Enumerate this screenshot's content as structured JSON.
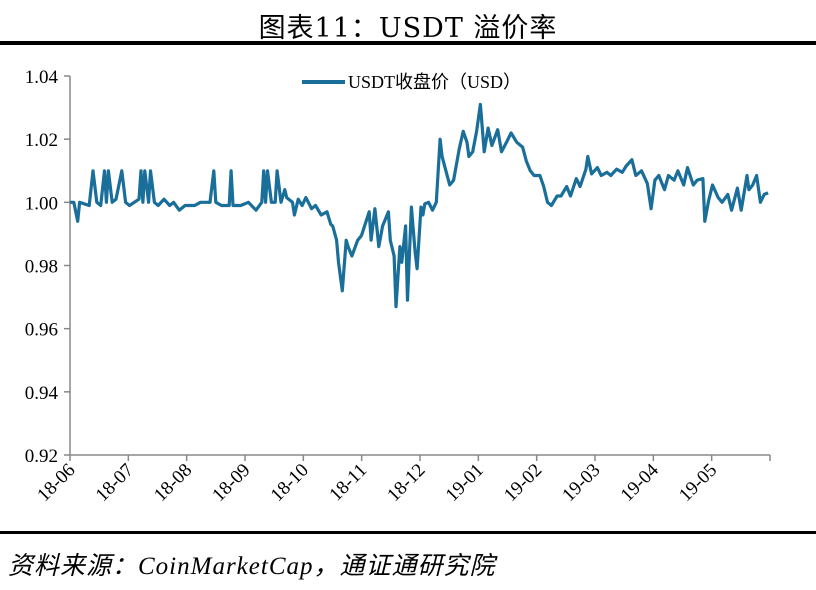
{
  "title": "图表11：USDT 溢价率",
  "source": "资料来源：CoinMarketCap，通证通研究院",
  "colors": {
    "series": "#1a6e9a",
    "axis": "#888888"
  },
  "chart_data": {
    "type": "line",
    "title": "图表11：USDT 溢价率",
    "xlabel": "",
    "ylabel": "",
    "ylim": [
      0.92,
      1.04
    ],
    "yticks": [
      "0.92",
      "0.94",
      "0.96",
      "0.98",
      "1.00",
      "1.02",
      "1.04"
    ],
    "xlim": [
      "2018-06-01",
      "2019-06-01"
    ],
    "xticks": [
      "18-06",
      "18-07",
      "18-08",
      "18-09",
      "18-10",
      "18-11",
      "18-12",
      "19-01",
      "19-02",
      "19-03",
      "19-04",
      "19-05"
    ],
    "grid": false,
    "legend_position": "top",
    "series": [
      {
        "name": "USDT收盘价（USD）",
        "color": "#1a6e9a",
        "points": [
          [
            "2018-06-01",
            1.0
          ],
          [
            "2018-06-03",
            1.0
          ],
          [
            "2018-06-05",
            0.994
          ],
          [
            "2018-06-06",
            1.0
          ],
          [
            "2018-06-11",
            0.999
          ],
          [
            "2018-06-13",
            1.01
          ],
          [
            "2018-06-15",
            1.0
          ],
          [
            "2018-06-17",
            0.999
          ],
          [
            "2018-06-19",
            1.01
          ],
          [
            "2018-06-20",
            1.0
          ],
          [
            "2018-06-21",
            1.01
          ],
          [
            "2018-06-23",
            1.0
          ],
          [
            "2018-06-25",
            1.001
          ],
          [
            "2018-06-28",
            1.01
          ],
          [
            "2018-06-30",
            1.0
          ],
          [
            "2018-07-02",
            0.999
          ],
          [
            "2018-07-07",
            1.001
          ],
          [
            "2018-07-08",
            1.01
          ],
          [
            "2018-07-09",
            1.0
          ],
          [
            "2018-07-10",
            1.01
          ],
          [
            "2018-07-12",
            1.0
          ],
          [
            "2018-07-13",
            1.01
          ],
          [
            "2018-07-15",
            1.0
          ],
          [
            "2018-07-17",
            0.999
          ],
          [
            "2018-07-20",
            1.001
          ],
          [
            "2018-07-23",
            0.999
          ],
          [
            "2018-07-25",
            1.0
          ],
          [
            "2018-07-28",
            0.9975
          ],
          [
            "2018-07-31",
            0.999
          ],
          [
            "2018-08-05",
            0.999
          ],
          [
            "2018-08-08",
            1.0
          ],
          [
            "2018-08-11",
            1.0
          ],
          [
            "2018-08-13",
            1.0
          ],
          [
            "2018-08-15",
            1.01
          ],
          [
            "2018-08-16",
            1.0
          ],
          [
            "2018-08-19",
            0.999
          ],
          [
            "2018-08-23",
            0.999
          ],
          [
            "2018-08-24",
            1.01
          ],
          [
            "2018-08-25",
            0.999
          ],
          [
            "2018-08-29",
            0.999
          ],
          [
            "2018-09-02",
            1.0
          ],
          [
            "2018-09-06",
            0.9975
          ],
          [
            "2018-09-09",
            1.0
          ],
          [
            "2018-09-10",
            1.01
          ],
          [
            "2018-09-11",
            1.0
          ],
          [
            "2018-09-12",
            1.01
          ],
          [
            "2018-09-14",
            1.0
          ],
          [
            "2018-09-16",
            1.0
          ],
          [
            "2018-09-17",
            1.01
          ],
          [
            "2018-09-19",
            1.0
          ],
          [
            "2018-09-21",
            1.004
          ],
          [
            "2018-09-22",
            1.0015
          ],
          [
            "2018-09-25",
            1.0
          ],
          [
            "2018-09-26",
            0.996
          ],
          [
            "2018-09-28",
            1.001
          ],
          [
            "2018-09-30",
            0.999
          ],
          [
            "2018-10-02",
            1.0015
          ],
          [
            "2018-10-05",
            0.998
          ],
          [
            "2018-10-07",
            0.999
          ],
          [
            "2018-10-10",
            0.996
          ],
          [
            "2018-10-13",
            0.997
          ],
          [
            "2018-10-15",
            0.993
          ],
          [
            "2018-10-16",
            0.9925
          ],
          [
            "2018-10-18",
            0.988
          ],
          [
            "2018-10-19",
            0.981
          ],
          [
            "2018-10-21",
            0.972
          ],
          [
            "2018-10-23",
            0.988
          ],
          [
            "2018-10-24",
            0.986
          ],
          [
            "2018-10-26",
            0.983
          ],
          [
            "2018-10-29",
            0.988
          ],
          [
            "2018-10-31",
            0.9895
          ],
          [
            "2018-11-04",
            0.997
          ],
          [
            "2018-11-05",
            0.988
          ],
          [
            "2018-11-07",
            0.998
          ],
          [
            "2018-11-09",
            0.986
          ],
          [
            "2018-11-11",
            0.9925
          ],
          [
            "2018-11-14",
            0.997
          ],
          [
            "2018-11-15",
            0.988
          ],
          [
            "2018-11-17",
            0.983
          ],
          [
            "2018-11-18",
            0.967
          ],
          [
            "2018-11-20",
            0.986
          ],
          [
            "2018-11-21",
            0.981
          ],
          [
            "2018-11-23",
            0.9925
          ],
          [
            "2018-11-24",
            0.969
          ],
          [
            "2018-11-26",
            0.9985
          ],
          [
            "2018-11-28",
            0.984
          ],
          [
            "2018-11-29",
            0.979
          ],
          [
            "2018-12-01",
            0.9985
          ],
          [
            "2018-12-02",
            0.996
          ],
          [
            "2018-12-03",
            0.9995
          ],
          [
            "2018-12-05",
            1.0
          ],
          [
            "2018-12-07",
            0.9975
          ],
          [
            "2018-12-09",
            1.0
          ],
          [
            "2018-12-11",
            1.02
          ],
          [
            "2018-12-12",
            1.0145
          ],
          [
            "2018-12-14",
            1.01
          ],
          [
            "2018-12-16",
            1.0055
          ],
          [
            "2018-12-18",
            1.007
          ],
          [
            "2018-12-21",
            1.017
          ],
          [
            "2018-12-23",
            1.0225
          ],
          [
            "2018-12-25",
            1.019
          ],
          [
            "2018-12-26",
            1.0145
          ],
          [
            "2018-12-28",
            1.016
          ],
          [
            "2018-12-30",
            1.0225
          ],
          [
            "2019-01-01",
            1.031
          ],
          [
            "2019-01-03",
            1.016
          ],
          [
            "2019-01-05",
            1.0235
          ],
          [
            "2019-01-07",
            1.018
          ],
          [
            "2019-01-10",
            1.023
          ],
          [
            "2019-01-12",
            1.016
          ],
          [
            "2019-01-15",
            1.0195
          ],
          [
            "2019-01-17",
            1.022
          ],
          [
            "2019-01-20",
            1.019
          ],
          [
            "2019-01-23",
            1.0175
          ],
          [
            "2019-01-25",
            1.013
          ],
          [
            "2019-01-27",
            1.01
          ],
          [
            "2019-01-29",
            1.0085
          ],
          [
            "2019-02-01",
            1.0085
          ],
          [
            "2019-02-03",
            1.005
          ],
          [
            "2019-02-05",
            1.0
          ],
          [
            "2019-02-07",
            0.999
          ],
          [
            "2019-02-10",
            1.002
          ],
          [
            "2019-02-12",
            1.002
          ],
          [
            "2019-02-15",
            1.005
          ],
          [
            "2019-02-17",
            1.002
          ],
          [
            "2019-02-20",
            1.0075
          ],
          [
            "2019-02-22",
            1.005
          ],
          [
            "2019-02-25",
            1.0105
          ],
          [
            "2019-02-26",
            1.0145
          ],
          [
            "2019-02-28",
            1.009
          ],
          [
            "2019-03-03",
            1.011
          ],
          [
            "2019-03-05",
            1.0085
          ],
          [
            "2019-03-08",
            1.0095
          ],
          [
            "2019-03-10",
            1.0085
          ],
          [
            "2019-03-13",
            1.0105
          ],
          [
            "2019-03-16",
            1.0095
          ],
          [
            "2019-03-18",
            1.0115
          ],
          [
            "2019-03-21",
            1.0135
          ],
          [
            "2019-03-23",
            1.0085
          ],
          [
            "2019-03-26",
            1.01
          ],
          [
            "2019-03-29",
            1.006
          ],
          [
            "2019-03-31",
            0.998
          ],
          [
            "2019-04-02",
            1.007
          ],
          [
            "2019-04-04",
            1.0085
          ],
          [
            "2019-04-07",
            1.004
          ],
          [
            "2019-04-09",
            1.0085
          ],
          [
            "2019-04-12",
            1.007
          ],
          [
            "2019-04-14",
            1.01
          ],
          [
            "2019-04-17",
            1.0055
          ],
          [
            "2019-04-19",
            1.011
          ],
          [
            "2019-04-22",
            1.0055
          ],
          [
            "2019-04-24",
            1.007
          ],
          [
            "2019-04-27",
            1.0075
          ],
          [
            "2019-04-28",
            0.994
          ],
          [
            "2019-04-30",
            1.0005
          ],
          [
            "2019-05-02",
            1.0055
          ],
          [
            "2019-05-05",
            1.0015
          ],
          [
            "2019-05-07",
            1.0
          ],
          [
            "2019-05-10",
            1.0025
          ],
          [
            "2019-05-12",
            0.9975
          ],
          [
            "2019-05-15",
            1.0045
          ],
          [
            "2019-05-17",
            0.9975
          ],
          [
            "2019-05-20",
            1.0085
          ],
          [
            "2019-05-21",
            1.004
          ],
          [
            "2019-05-23",
            1.0055
          ],
          [
            "2019-05-25",
            1.0085
          ],
          [
            "2019-05-27",
            1.0
          ],
          [
            "2019-05-29",
            1.0025
          ],
          [
            "2019-05-31",
            1.003
          ]
        ]
      }
    ]
  }
}
